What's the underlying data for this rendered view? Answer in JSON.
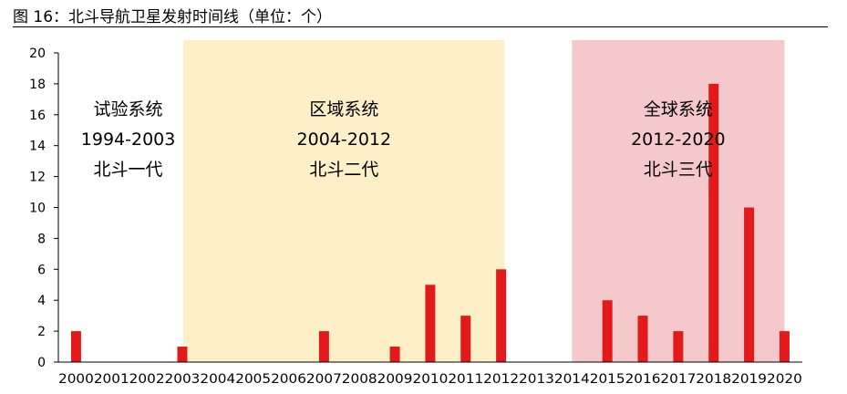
{
  "figure": {
    "title": "图 16：北斗导航卫星发射时间线（单位：个）"
  },
  "chart_data": {
    "type": "bar",
    "title": "北斗导航卫星发射时间线（单位：个）",
    "xlabel": "",
    "ylabel": "",
    "ylim": [
      0,
      20
    ],
    "yticks": [
      0,
      2,
      4,
      6,
      8,
      10,
      12,
      14,
      16,
      18,
      20
    ],
    "categories": [
      "2000",
      "2001",
      "2002",
      "2003",
      "2004",
      "2005",
      "2006",
      "2007",
      "2008",
      "2009",
      "2010",
      "2011",
      "2012",
      "2013",
      "2014",
      "2015",
      "2016",
      "2017",
      "2018",
      "2019",
      "2020"
    ],
    "values": [
      2,
      0,
      0,
      1,
      0,
      0,
      0,
      2,
      0,
      1,
      5,
      3,
      6,
      0,
      0,
      4,
      3,
      2,
      18,
      10,
      2
    ],
    "bar_color": "#e31a1c",
    "grid": false,
    "bands": [
      {
        "lines": [
          "试验系统",
          "1994-2003",
          "北斗一代"
        ],
        "from_category": "2000",
        "to_category": "2003",
        "color": "#ffffff"
      },
      {
        "lines": [
          "区域系统",
          "2004-2012",
          "北斗二代"
        ],
        "from_category": "2003",
        "to_category": "2012",
        "color": "#fdf0c8"
      },
      {
        "lines": [
          "全球系统",
          "2012-2020",
          "北斗三代"
        ],
        "from_category": "2015",
        "to_category": "2020",
        "color": "#f5c8cb"
      }
    ]
  }
}
